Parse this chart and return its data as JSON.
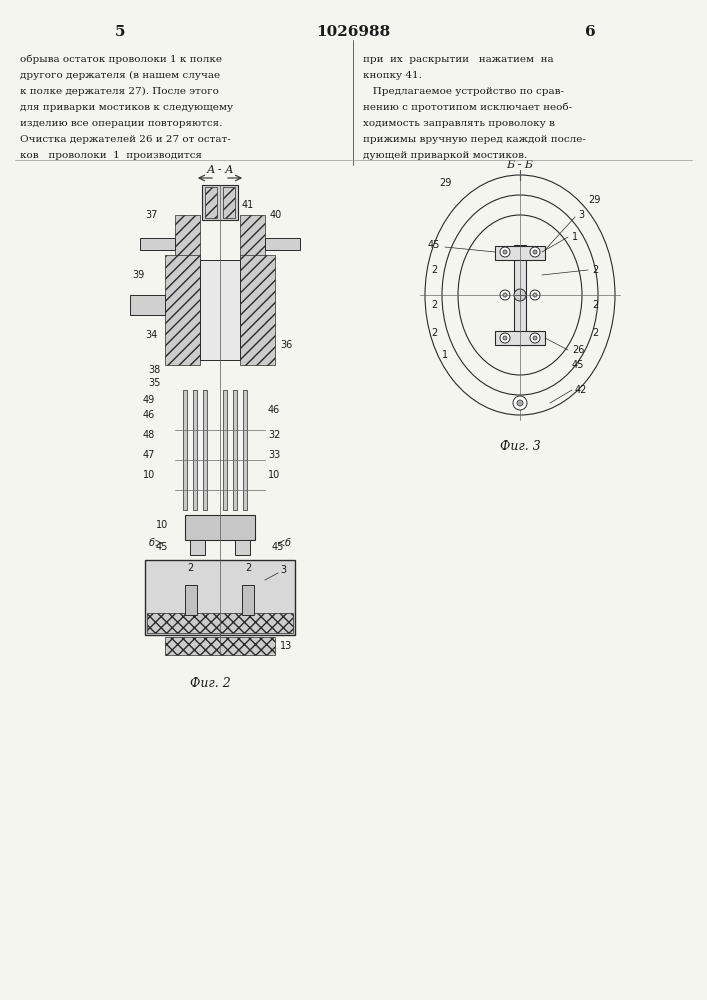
{
  "page_width": 7.07,
  "page_height": 10.0,
  "bg_color": "#f5f5f0",
  "text_color": "#1a1a1a",
  "line_color": "#2a2a2a",
  "header": {
    "left_num": "5",
    "center_num": "1026988",
    "right_num": "6"
  },
  "left_col_text": [
    "обрыва остаток проволоки 1 к полке",
    "другого держателя (в нашем случае",
    "к полке держателя 27). После этого",
    "для приварки мостиков к следующему",
    "изделию все операции повторяются.",
    "Очистка держателей 26 и 27 от остат-",
    "ков   проволоки  1  производится"
  ],
  "right_col_text": [
    "при  их  раскрытии   нажатием  на",
    "кнопку 41.",
    "   Предлагаемое устройство по срав-",
    "нению с прототипом исключает необ-",
    "ходимость заправлять проволоку в",
    "прижимы вручную перед каждой после-",
    "дующей приваркой мостиков."
  ],
  "fig2_label": "Фиг. 2",
  "fig3_label": "Фиг. 3",
  "section_aa": "А - А",
  "section_bb": "Б - Б"
}
